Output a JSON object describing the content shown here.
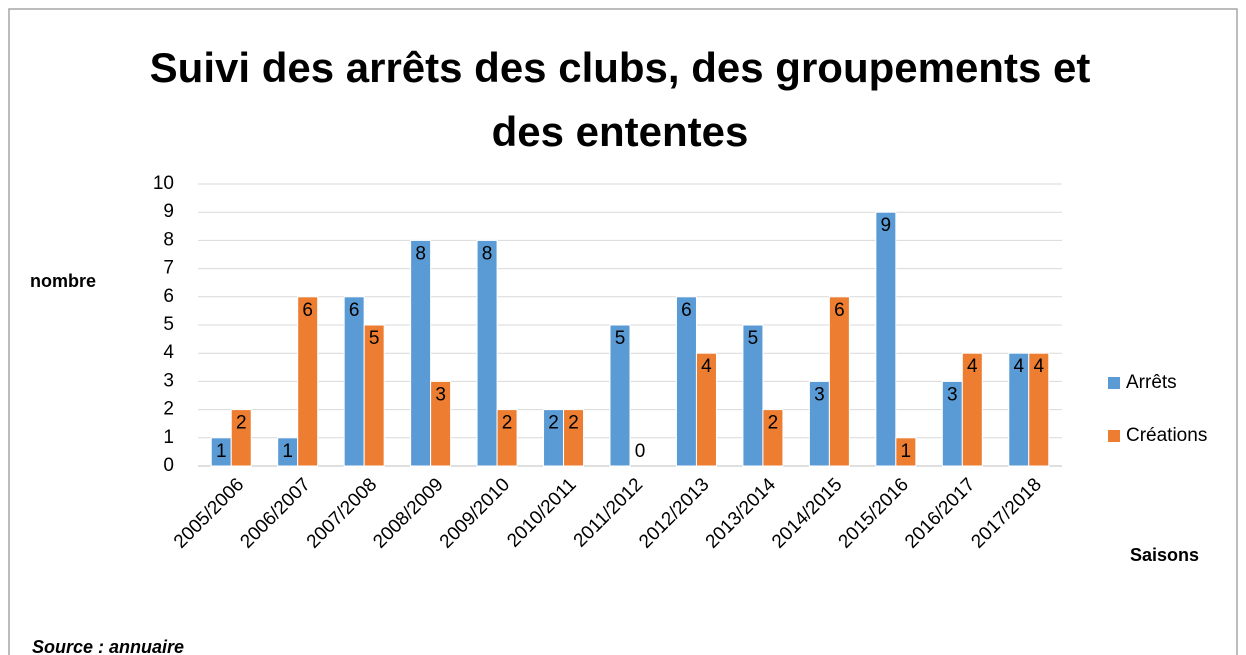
{
  "chart_data": {
    "type": "bar",
    "title": "Suivi des arrêts des clubs, des groupements et des ententes",
    "y_label": "nombre",
    "x_label": "Saisons",
    "source": "Source : annuaire",
    "categories": [
      "2005/2006",
      "2006/2007",
      "2007/2008",
      "2008/2009",
      "2009/2010",
      "2010/2011",
      "2011/2012",
      "2012/2013",
      "2013/2014",
      "2014/2015",
      "2015/2016",
      "2016/2017",
      "2017/2018"
    ],
    "series": [
      {
        "name": "Arrêts",
        "color": "#5b9bd5",
        "values": [
          1,
          1,
          6,
          8,
          8,
          2,
          5,
          6,
          5,
          3,
          9,
          3,
          4
        ]
      },
      {
        "name": "Créations",
        "color": "#ed7d31",
        "values": [
          2,
          6,
          5,
          3,
          2,
          2,
          0,
          4,
          2,
          6,
          1,
          4,
          4
        ]
      }
    ],
    "ylim": [
      0,
      10
    ],
    "yticks": [
      0,
      1,
      2,
      3,
      4,
      5,
      6,
      7,
      8,
      9,
      10
    ],
    "grid": true,
    "legend": "right"
  }
}
